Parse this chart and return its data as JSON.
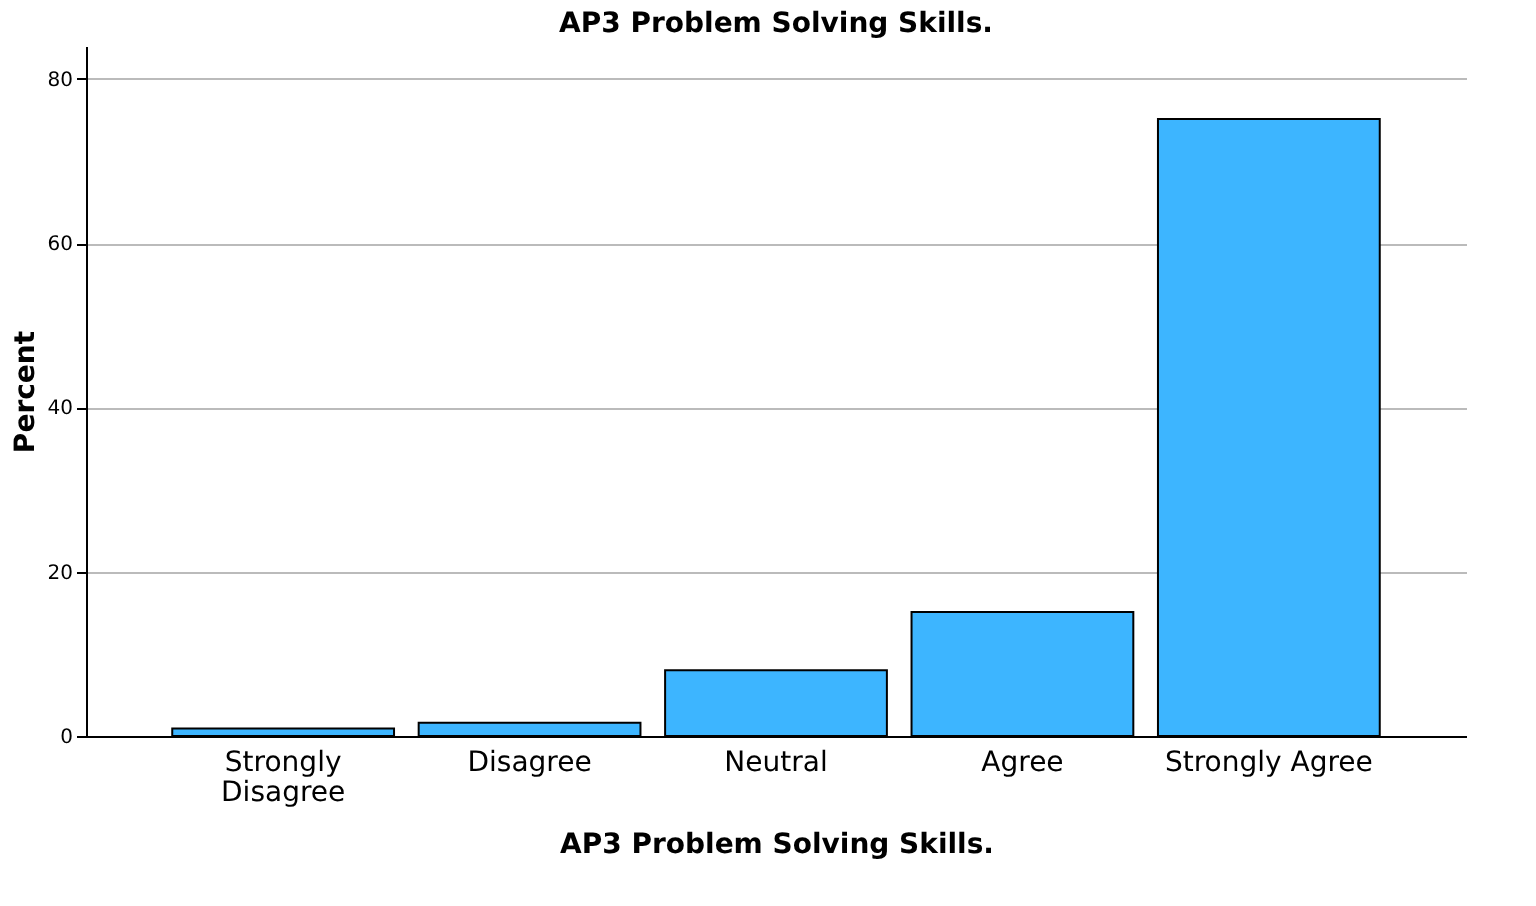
{
  "chart_data": {
    "type": "bar",
    "title": "AP3 Problem Solving Skills.",
    "xlabel": "AP3 Problem Solving Skills.",
    "ylabel": "Percent",
    "categories": [
      "Strongly Disagree",
      "Disagree",
      "Neutral",
      "Agree",
      "Strongly Agree"
    ],
    "values": [
      0.9,
      1.6,
      8.0,
      15.1,
      75.1
    ],
    "color": "#3db5ff",
    "ylim": [
      0,
      84
    ],
    "yticks": [
      0,
      20,
      40,
      60,
      80
    ],
    "grid": "y"
  }
}
